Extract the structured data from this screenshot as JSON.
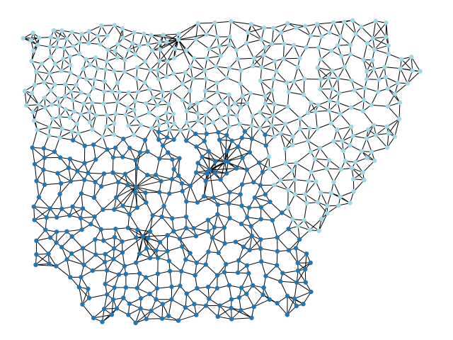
{
  "graph": {
    "edge_color": "#000000",
    "background_color": "#ffffff",
    "partitions": [
      {
        "name_hint": "north-east",
        "color": "#9fd8e6"
      },
      {
        "name_hint": "south-west",
        "color": "#1f77b4"
      }
    ]
  }
}
